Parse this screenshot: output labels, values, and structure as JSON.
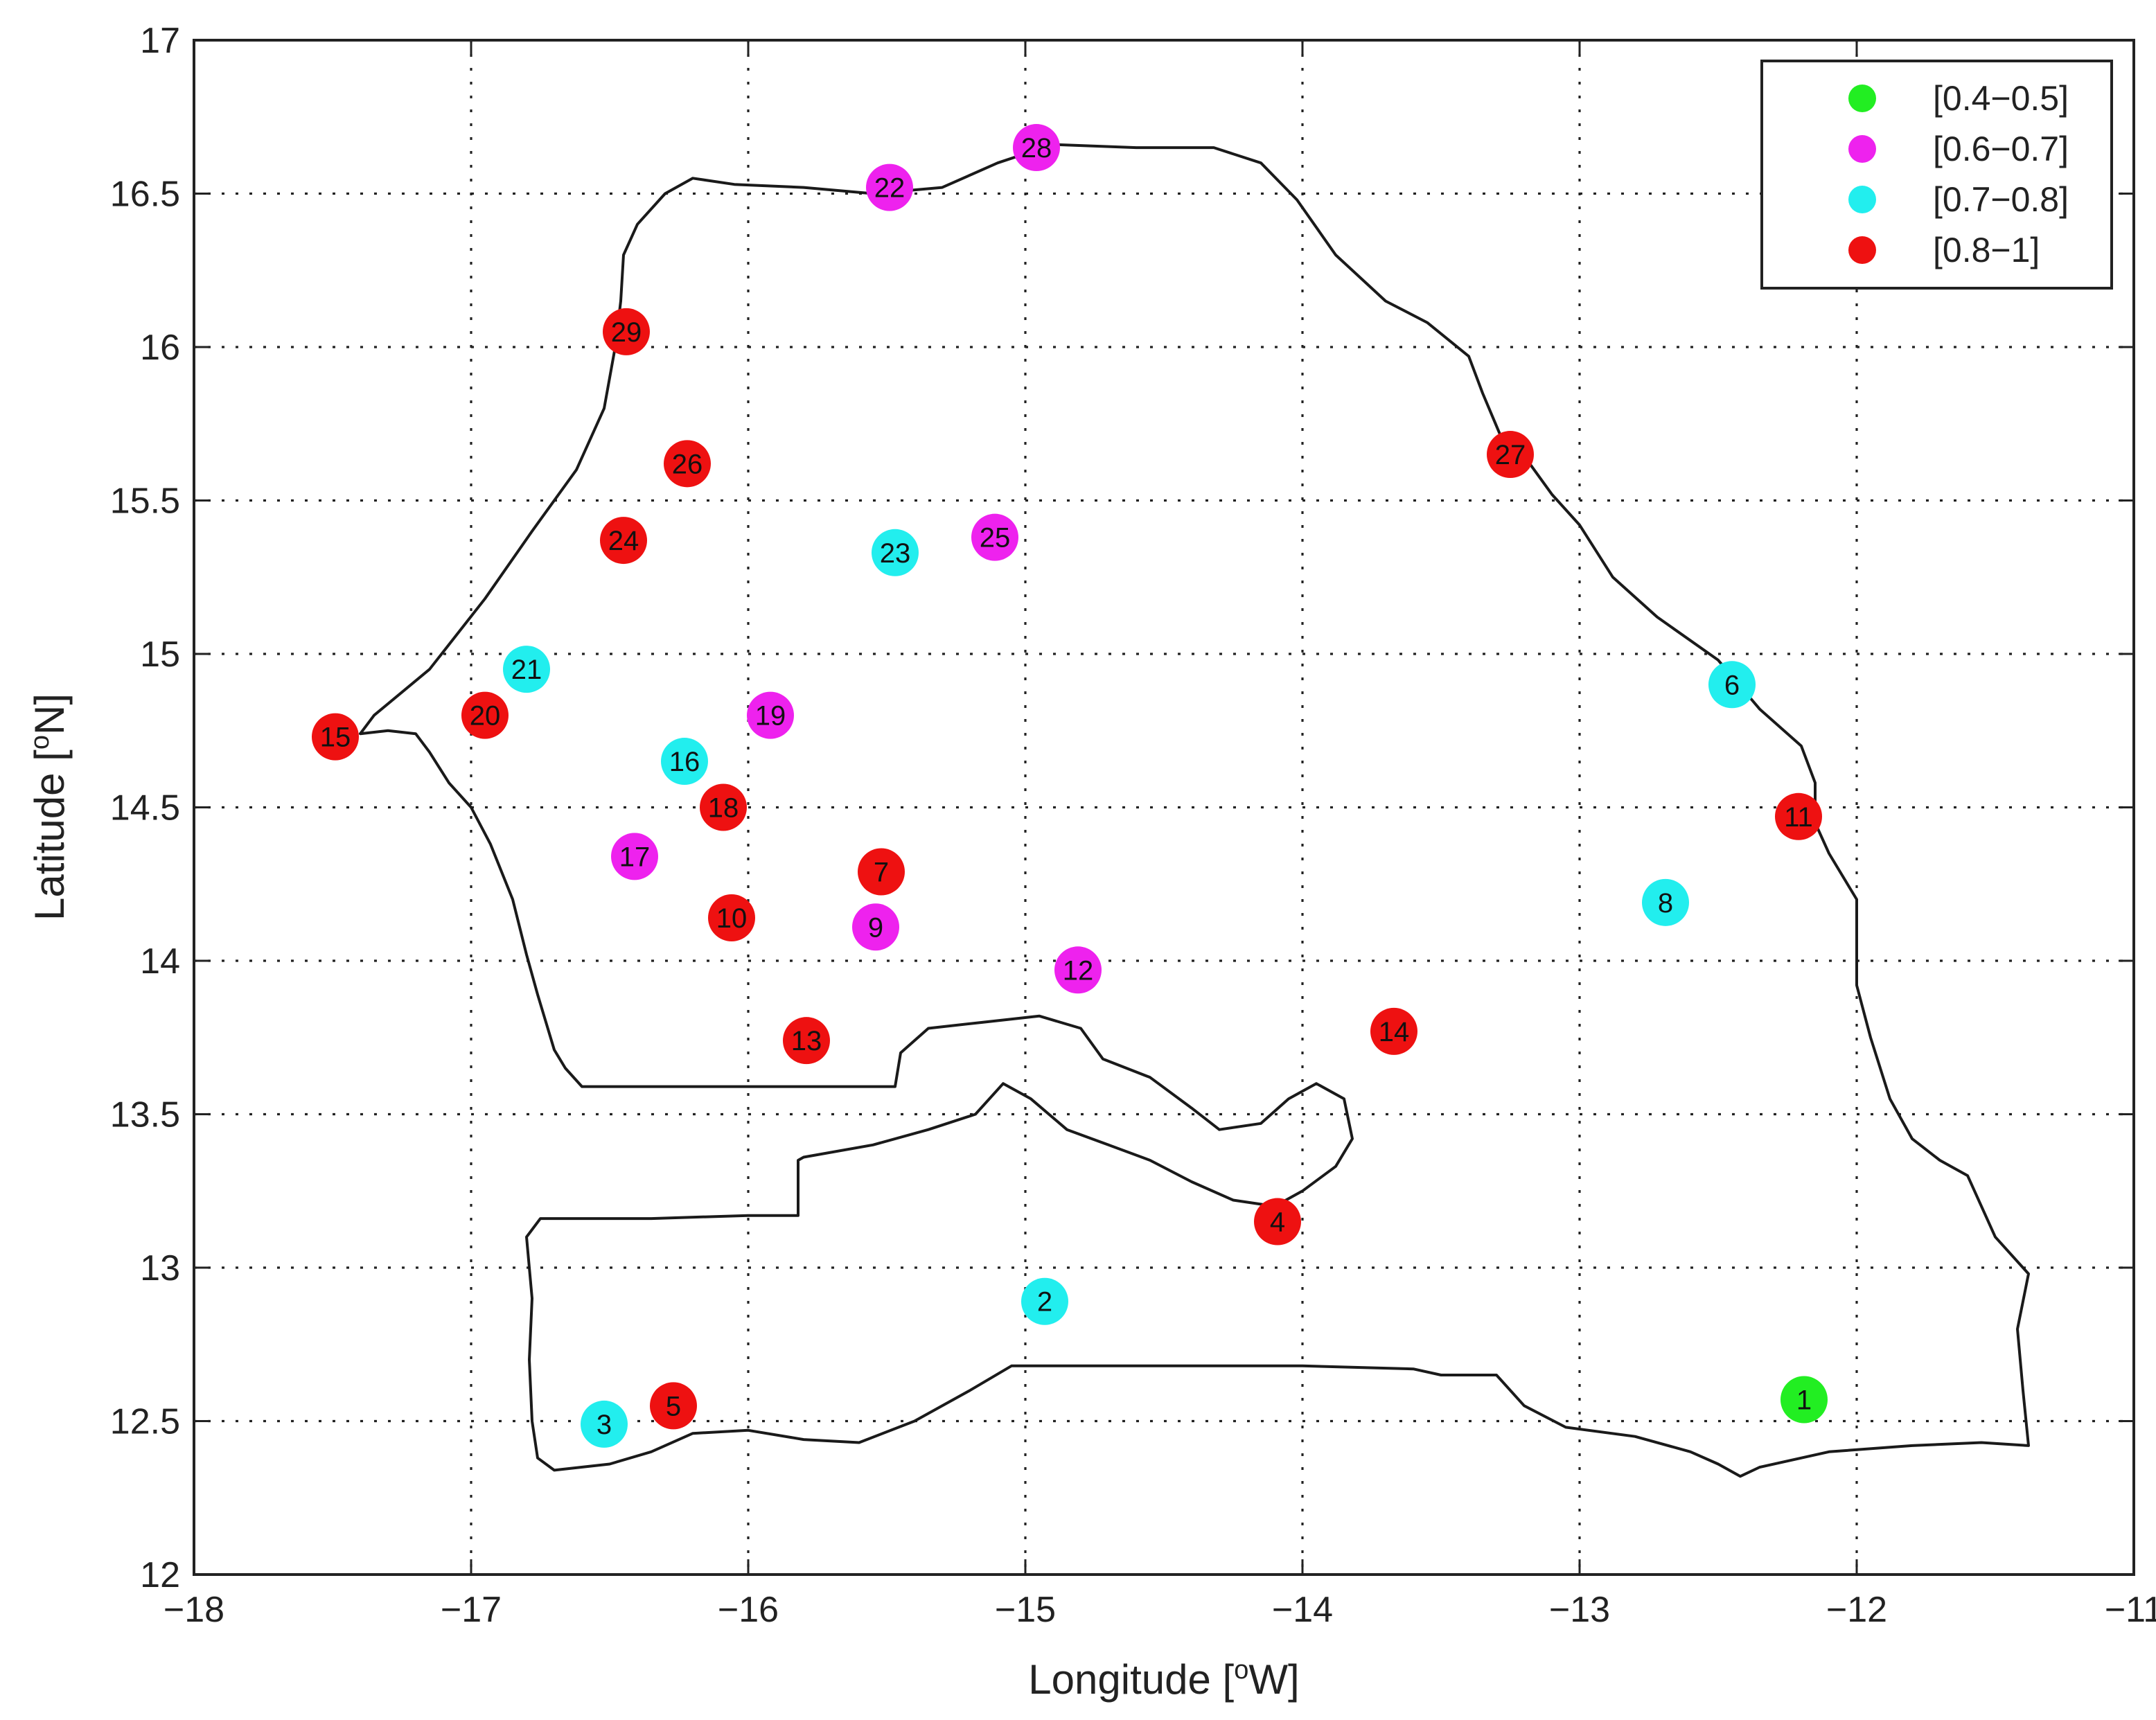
{
  "chart_data": {
    "type": "scatter",
    "xlabel": "Longitude [",
    "xlabel_sup": "o",
    "xlabel_end": "W]",
    "ylabel": "Latitude [",
    "ylabel_sup": "o",
    "ylabel_end": "N]",
    "xlim": [
      -18,
      -11
    ],
    "ylim": [
      12,
      17
    ],
    "x_ticks": [
      -18,
      -17,
      -16,
      -15,
      -14,
      -13,
      -12,
      -11
    ],
    "y_ticks": [
      12,
      12.5,
      13,
      13.5,
      14,
      14.5,
      15,
      15.5,
      16,
      16.5,
      17
    ],
    "x_tick_labels": [
      "−18",
      "−17",
      "−16",
      "−15",
      "−14",
      "−13",
      "−12",
      "−11"
    ],
    "y_tick_labels": [
      "12",
      "12.5",
      "13",
      "13.5",
      "14",
      "14.5",
      "15",
      "15.5",
      "16",
      "16.5",
      "17"
    ],
    "grid": true,
    "legend_position": "top-right",
    "classes": [
      {
        "label": "[0.4−0.5]",
        "color": "#22ee22"
      },
      {
        "label": "[0.6−0.7]",
        "color": "#ee22ee"
      },
      {
        "label": "[0.7−0.8]",
        "color": "#22eeee"
      },
      {
        "label": "[0.8−1]",
        "color": "#ee1111"
      }
    ],
    "stations": [
      {
        "id": "1",
        "lon": -12.19,
        "lat": 12.57,
        "class": 0
      },
      {
        "id": "2",
        "lon": -14.93,
        "lat": 12.89,
        "class": 2
      },
      {
        "id": "3",
        "lon": -16.52,
        "lat": 12.49,
        "class": 2
      },
      {
        "id": "4",
        "lon": -14.09,
        "lat": 13.15,
        "class": 3
      },
      {
        "id": "5",
        "lon": -16.27,
        "lat": 12.55,
        "class": 3
      },
      {
        "id": "6",
        "lon": -12.45,
        "lat": 14.9,
        "class": 2
      },
      {
        "id": "7",
        "lon": -15.52,
        "lat": 14.29,
        "class": 3
      },
      {
        "id": "8",
        "lon": -12.69,
        "lat": 14.19,
        "class": 2
      },
      {
        "id": "9",
        "lon": -15.54,
        "lat": 14.11,
        "class": 1
      },
      {
        "id": "10",
        "lon": -16.06,
        "lat": 14.14,
        "class": 3
      },
      {
        "id": "11",
        "lon": -12.21,
        "lat": 14.47,
        "class": 3
      },
      {
        "id": "12",
        "lon": -14.81,
        "lat": 13.97,
        "class": 1
      },
      {
        "id": "13",
        "lon": -15.79,
        "lat": 13.74,
        "class": 3
      },
      {
        "id": "14",
        "lon": -13.67,
        "lat": 13.77,
        "class": 3
      },
      {
        "id": "15",
        "lon": -17.49,
        "lat": 14.73,
        "class": 3
      },
      {
        "id": "16",
        "lon": -16.23,
        "lat": 14.65,
        "class": 2
      },
      {
        "id": "17",
        "lon": -16.41,
        "lat": 14.34,
        "class": 1
      },
      {
        "id": "18",
        "lon": -16.09,
        "lat": 14.5,
        "class": 3
      },
      {
        "id": "19",
        "lon": -15.92,
        "lat": 14.8,
        "class": 1
      },
      {
        "id": "20",
        "lon": -16.95,
        "lat": 14.8,
        "class": 3
      },
      {
        "id": "21",
        "lon": -16.8,
        "lat": 14.95,
        "class": 2
      },
      {
        "id": "22",
        "lon": -15.49,
        "lat": 16.52,
        "class": 1
      },
      {
        "id": "23",
        "lon": -15.47,
        "lat": 15.33,
        "class": 2
      },
      {
        "id": "24",
        "lon": -16.45,
        "lat": 15.37,
        "class": 3
      },
      {
        "id": "25",
        "lon": -15.11,
        "lat": 15.38,
        "class": 1
      },
      {
        "id": "26",
        "lon": -16.22,
        "lat": 15.62,
        "class": 3
      },
      {
        "id": "27",
        "lon": -13.25,
        "lat": 15.65,
        "class": 3
      },
      {
        "id": "28",
        "lon": -14.96,
        "lat": 16.65,
        "class": 1
      },
      {
        "id": "29",
        "lon": -16.44,
        "lat": 16.05,
        "class": 3
      }
    ]
  },
  "map": {
    "senegal_border": [
      [
        -17.4,
        14.74
      ],
      [
        -17.3,
        14.75
      ],
      [
        -17.2,
        14.74
      ],
      [
        -17.15,
        14.68
      ],
      [
        -17.08,
        14.58
      ],
      [
        -17.0,
        14.5
      ],
      [
        -16.93,
        14.38
      ],
      [
        -16.85,
        14.2
      ],
      [
        -16.8,
        14.02
      ],
      [
        -16.76,
        13.89
      ],
      [
        -16.73,
        13.8
      ],
      [
        -16.7,
        13.71
      ],
      [
        -16.66,
        13.65
      ],
      [
        -16.6,
        13.59
      ],
      [
        -15.8,
        13.59
      ],
      [
        -15.47,
        13.59
      ],
      [
        -15.45,
        13.7
      ],
      [
        -15.35,
        13.78
      ],
      [
        -15.15,
        13.8
      ],
      [
        -14.95,
        13.82
      ],
      [
        -14.8,
        13.78
      ],
      [
        -14.72,
        13.68
      ],
      [
        -14.55,
        13.62
      ],
      [
        -14.4,
        13.52
      ],
      [
        -14.3,
        13.45
      ],
      [
        -14.15,
        13.47
      ],
      [
        -14.05,
        13.55
      ],
      [
        -13.95,
        13.6
      ],
      [
        -13.85,
        13.55
      ],
      [
        -13.82,
        13.42
      ],
      [
        -13.88,
        13.33
      ],
      [
        -14.0,
        13.25
      ],
      [
        -14.1,
        13.2
      ],
      [
        -14.25,
        13.22
      ],
      [
        -14.4,
        13.28
      ],
      [
        -14.55,
        13.35
      ],
      [
        -14.7,
        13.4
      ],
      [
        -14.85,
        13.45
      ],
      [
        -14.98,
        13.55
      ],
      [
        -15.08,
        13.6
      ],
      [
        -15.18,
        13.5
      ],
      [
        -15.35,
        13.45
      ],
      [
        -15.55,
        13.4
      ],
      [
        -15.8,
        13.36
      ],
      [
        -15.82,
        13.35
      ],
      [
        -15.82,
        13.17
      ],
      [
        -16.0,
        13.17
      ],
      [
        -16.35,
        13.16
      ],
      [
        -16.75,
        13.16
      ],
      [
        -16.8,
        13.1
      ],
      [
        -16.78,
        12.9
      ],
      [
        -16.79,
        12.7
      ],
      [
        -16.78,
        12.5
      ],
      [
        -16.76,
        12.38
      ],
      [
        -16.7,
        12.34
      ],
      [
        -16.5,
        12.36
      ],
      [
        -16.35,
        12.4
      ],
      [
        -16.2,
        12.46
      ],
      [
        -16.0,
        12.47
      ],
      [
        -15.8,
        12.44
      ],
      [
        -15.6,
        12.43
      ],
      [
        -15.4,
        12.5
      ],
      [
        -15.2,
        12.6
      ],
      [
        -15.05,
        12.68
      ],
      [
        -14.5,
        12.68
      ],
      [
        -14.0,
        12.68
      ],
      [
        -13.6,
        12.67
      ],
      [
        -13.5,
        12.65
      ],
      [
        -13.3,
        12.65
      ],
      [
        -13.2,
        12.55
      ],
      [
        -13.05,
        12.48
      ],
      [
        -12.8,
        12.45
      ],
      [
        -12.6,
        12.4
      ],
      [
        -12.5,
        12.36
      ],
      [
        -12.42,
        12.32
      ],
      [
        -12.35,
        12.35
      ],
      [
        -12.1,
        12.4
      ],
      [
        -11.8,
        12.42
      ],
      [
        -11.55,
        12.43
      ],
      [
        -11.38,
        12.42
      ],
      [
        -11.4,
        12.6
      ],
      [
        -11.42,
        12.8
      ],
      [
        -11.38,
        12.98
      ],
      [
        -11.5,
        13.1
      ],
      [
        -11.6,
        13.3
      ],
      [
        -11.7,
        13.35
      ],
      [
        -11.8,
        13.42
      ],
      [
        -11.88,
        13.55
      ],
      [
        -11.95,
        13.75
      ],
      [
        -12.0,
        13.92
      ],
      [
        -12.0,
        14.2
      ],
      [
        -12.1,
        14.35
      ],
      [
        -12.15,
        14.45
      ],
      [
        -12.15,
        14.58
      ],
      [
        -12.2,
        14.7
      ],
      [
        -12.35,
        14.82
      ],
      [
        -12.5,
        14.98
      ],
      [
        -12.72,
        15.12
      ],
      [
        -12.88,
        15.25
      ],
      [
        -13.0,
        15.42
      ],
      [
        -13.1,
        15.52
      ],
      [
        -13.18,
        15.62
      ],
      [
        -13.28,
        15.7
      ],
      [
        -13.35,
        15.85
      ],
      [
        -13.4,
        15.97
      ],
      [
        -13.55,
        16.08
      ],
      [
        -13.7,
        16.15
      ],
      [
        -13.88,
        16.3
      ],
      [
        -14.02,
        16.48
      ],
      [
        -14.15,
        16.6
      ],
      [
        -14.32,
        16.65
      ],
      [
        -14.6,
        16.65
      ],
      [
        -14.9,
        16.66
      ],
      [
        -15.1,
        16.6
      ],
      [
        -15.3,
        16.52
      ],
      [
        -15.55,
        16.5
      ],
      [
        -15.8,
        16.52
      ],
      [
        -16.05,
        16.53
      ],
      [
        -16.2,
        16.55
      ],
      [
        -16.3,
        16.5
      ],
      [
        -16.4,
        16.4
      ],
      [
        -16.45,
        16.3
      ],
      [
        -16.46,
        16.15
      ],
      [
        -16.48,
        16.0
      ],
      [
        -16.52,
        15.8
      ],
      [
        -16.62,
        15.6
      ],
      [
        -16.78,
        15.4
      ],
      [
        -16.95,
        15.18
      ],
      [
        -17.15,
        14.95
      ],
      [
        -17.35,
        14.8
      ],
      [
        -17.4,
        14.74
      ]
    ]
  }
}
